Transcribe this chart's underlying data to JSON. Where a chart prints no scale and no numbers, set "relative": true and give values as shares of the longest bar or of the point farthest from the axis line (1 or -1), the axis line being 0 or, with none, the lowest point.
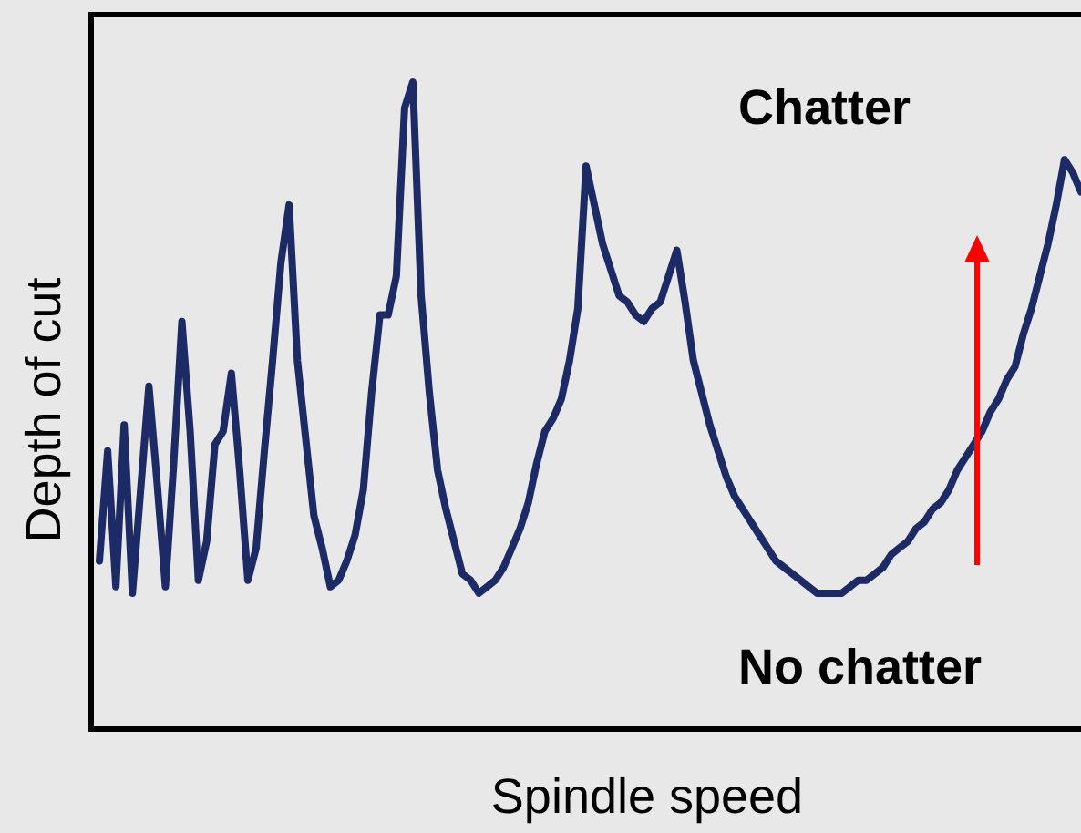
{
  "chart_data": {
    "type": "line",
    "relative": true,
    "xlabel": "Spindle speed",
    "ylabel": "Depth of cut",
    "annotations": [
      "Chatter",
      "No chatter"
    ],
    "line_style": "solid",
    "categories": [
      null,
      null,
      null,
      null,
      null,
      null,
      null,
      null,
      null,
      null,
      null,
      null,
      null,
      null,
      null,
      null,
      null,
      null,
      null,
      null,
      null,
      null,
      null,
      null,
      null,
      null,
      null,
      null,
      null,
      null,
      null,
      null,
      null,
      null,
      null,
      null,
      null,
      null,
      null,
      null,
      null,
      null,
      null,
      null,
      null,
      null,
      null,
      null,
      null,
      null,
      null,
      null,
      null,
      null,
      null,
      null,
      null,
      null,
      null,
      null,
      null,
      null,
      null,
      null,
      null,
      null,
      null,
      null,
      null,
      null,
      null,
      null,
      null,
      null,
      null,
      null,
      null,
      null,
      null,
      null,
      null,
      null,
      null,
      null,
      null,
      null,
      null,
      null,
      null,
      null,
      null,
      null,
      null,
      null,
      null,
      null,
      null,
      null,
      null,
      null,
      null,
      null,
      null,
      null,
      null,
      null,
      null,
      null,
      null,
      null,
      null,
      null,
      null,
      null,
      null,
      null,
      null,
      null,
      null,
      null,
      null
    ],
    "series": [
      {
        "color": "#1c2a66",
        "values": [
          null,
          0.26,
          0.43,
          0.22,
          0.47,
          0.21,
          0.37,
          0.53,
          0.38,
          0.22,
          0.41,
          0.63,
          0.46,
          0.23,
          0.29,
          0.44,
          0.46,
          0.55,
          0.4,
          0.23,
          0.28,
          0.43,
          0.57,
          0.72,
          0.81,
          0.57,
          0.45,
          0.33,
          0.28,
          0.22,
          0.23,
          0.26,
          0.3,
          0.37,
          0.52,
          0.64,
          0.64,
          0.7,
          0.96,
          1,
          0.67,
          0.52,
          0.4,
          0.34,
          0.29,
          0.24,
          0.23,
          0.21,
          0.22,
          0.23,
          0.25,
          0.28,
          0.31,
          0.35,
          0.41,
          0.46,
          0.48,
          0.51,
          0.57,
          0.65,
          0.87,
          0.81,
          0.75,
          0.71,
          0.67,
          0.66,
          0.64,
          0.63,
          0.65,
          0.66,
          0.7,
          0.74,
          0.66,
          0.57,
          0.52,
          0.47,
          0.43,
          0.39,
          0.36,
          0.34,
          0.32,
          0.3,
          0.28,
          0.26,
          0.25,
          0.24,
          0.23,
          0.22,
          0.21,
          0.21,
          0.21,
          0.21,
          0.22,
          0.23,
          0.23,
          0.24,
          0.25,
          0.27,
          0.28,
          0.29,
          0.31,
          0.32,
          0.34,
          0.35,
          0.37,
          0.4,
          0.42,
          0.44,
          0.46,
          0.49,
          0.51,
          0.54,
          0.56,
          0.61,
          0.65,
          0.7,
          0.75,
          0.81,
          0.88,
          0.86,
          0.83
        ]
      }
    ]
  }
}
